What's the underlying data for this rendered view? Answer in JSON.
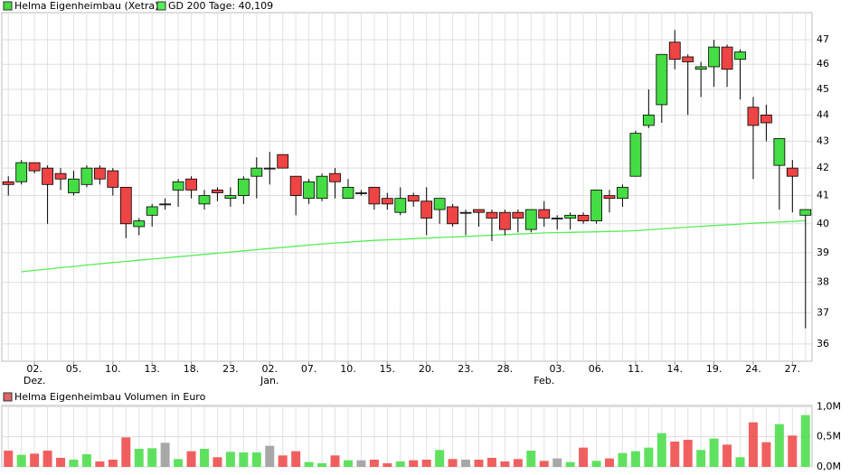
{
  "chart_data": [
    {
      "type": "candlestick",
      "title": "Helma Eigenheimbau (Xetra)",
      "legend_color": "#44dd44",
      "log_scale": true,
      "grid": true,
      "up_color": "#44dd44",
      "down_color": "#ee4444",
      "flat_color": "#999999",
      "categories": [
        null,
        null,
        "02.",
        null,
        null,
        "05.",
        null,
        null,
        "10.",
        null,
        null,
        "13.",
        null,
        null,
        "18.",
        null,
        null,
        "23.",
        null,
        null,
        "02.",
        null,
        null,
        "07.",
        null,
        null,
        "10.",
        null,
        null,
        "15.",
        null,
        null,
        "20.",
        null,
        null,
        "23.",
        null,
        null,
        "28.",
        null,
        null,
        null,
        "03.",
        null,
        null,
        "06.",
        null,
        null,
        "11.",
        null,
        null,
        "14.",
        null,
        null,
        "19.",
        null,
        null,
        "24.",
        null,
        null,
        "27.",
        null
      ],
      "month_labels": [
        null,
        null,
        "Dez.",
        null,
        null,
        null,
        null,
        null,
        null,
        null,
        null,
        null,
        null,
        null,
        null,
        null,
        null,
        null,
        null,
        null,
        "Jan.",
        null,
        null,
        null,
        null,
        null,
        null,
        null,
        null,
        null,
        null,
        null,
        null,
        null,
        null,
        null,
        null,
        null,
        null,
        null,
        null,
        "Feb.",
        null,
        null,
        null,
        null,
        null,
        null,
        null,
        null,
        null,
        null,
        null,
        null,
        null,
        null,
        null,
        null,
        null,
        null,
        null,
        null
      ],
      "open": [
        41.5,
        41.5,
        42.2,
        42.0,
        41.8,
        41.1,
        41.4,
        42.0,
        41.9,
        41.3,
        39.9,
        40.3,
        40.7,
        41.2,
        41.6,
        40.7,
        41.2,
        40.9,
        41.0,
        41.7,
        42.0,
        42.5,
        41.7,
        40.9,
        40.9,
        41.8,
        40.9,
        41.1,
        41.3,
        40.9,
        40.4,
        41.0,
        40.8,
        40.5,
        40.6,
        40.4,
        40.5,
        40.4,
        40.4,
        40.4,
        39.8,
        40.5,
        40.2,
        40.2,
        40.3,
        40.1,
        41.0,
        40.9,
        41.7,
        43.6,
        44.4,
        46.9,
        46.3,
        45.8,
        45.9,
        46.7,
        46.2,
        44.3,
        44.0,
        42.1,
        42.0,
        40.3
      ],
      "high": [
        41.7,
        42.3,
        42.2,
        42.1,
        42.0,
        41.9,
        42.1,
        42.1,
        42.0,
        41.3,
        40.2,
        40.7,
        40.9,
        41.6,
        41.7,
        41.2,
        41.3,
        41.3,
        41.7,
        42.4,
        42.6,
        42.5,
        41.7,
        41.6,
        41.8,
        42.0,
        41.6,
        41.2,
        41.3,
        41.1,
        41.3,
        41.1,
        41.3,
        40.9,
        40.7,
        40.5,
        40.5,
        40.5,
        40.5,
        40.5,
        40.5,
        40.8,
        40.3,
        40.4,
        40.4,
        41.2,
        41.2,
        41.4,
        43.4,
        45.0,
        46.4,
        47.4,
        46.4,
        46.1,
        47.0,
        46.8,
        46.6,
        44.7,
        44.4,
        43.1,
        42.3,
        40.5
      ],
      "low": [
        41.0,
        41.4,
        41.8,
        40.0,
        41.2,
        41.0,
        41.3,
        41.4,
        41.0,
        39.5,
        39.6,
        39.9,
        40.5,
        40.6,
        40.9,
        40.5,
        40.8,
        40.6,
        40.7,
        40.9,
        41.4,
        42.0,
        40.3,
        40.7,
        40.8,
        40.9,
        40.9,
        41.0,
        40.5,
        40.5,
        40.3,
        40.6,
        39.6,
        40.0,
        39.9,
        39.6,
        39.9,
        39.4,
        39.6,
        39.7,
        39.7,
        39.9,
        39.8,
        39.8,
        40.0,
        40.0,
        40.4,
        40.6,
        41.7,
        43.5,
        43.7,
        45.8,
        44.0,
        44.7,
        45.1,
        45.1,
        44.6,
        41.6,
        43.0,
        40.5,
        40.4,
        36.5
      ],
      "close": [
        41.4,
        42.2,
        41.9,
        41.4,
        41.6,
        41.6,
        42.0,
        41.6,
        41.3,
        40.0,
        40.1,
        40.6,
        40.7,
        41.5,
        41.2,
        41.0,
        41.1,
        41.0,
        41.6,
        42.0,
        42.0,
        42.0,
        41.0,
        41.5,
        41.7,
        41.5,
        41.3,
        41.1,
        40.7,
        40.7,
        40.9,
        40.8,
        40.2,
        40.9,
        40.0,
        40.4,
        40.4,
        40.2,
        39.8,
        40.2,
        40.5,
        40.2,
        40.2,
        40.3,
        40.1,
        41.2,
        40.9,
        41.3,
        43.3,
        44.0,
        46.4,
        46.2,
        46.1,
        45.9,
        46.7,
        45.8,
        46.5,
        43.6,
        43.7,
        43.1,
        41.7,
        40.5
      ],
      "series": [
        {
          "name": "GD 200 Tage: 40,109",
          "color": "#55ee55",
          "values": [
            null,
            38.35,
            38.4,
            38.44,
            38.49,
            38.53,
            38.58,
            38.62,
            38.66,
            38.7,
            38.74,
            38.78,
            38.82,
            38.86,
            38.9,
            38.94,
            38.98,
            39.02,
            39.06,
            39.1,
            39.14,
            39.18,
            39.22,
            39.26,
            39.3,
            39.33,
            39.36,
            39.39,
            39.42,
            39.44,
            39.46,
            39.48,
            39.5,
            39.52,
            39.54,
            39.56,
            39.58,
            39.6,
            39.62,
            39.64,
            39.66,
            39.68,
            39.69,
            39.7,
            39.71,
            39.72,
            39.73,
            39.74,
            39.76,
            39.79,
            39.82,
            39.85,
            39.88,
            39.91,
            39.94,
            39.96,
            39.99,
            40.02,
            40.04,
            40.06,
            40.08,
            40.109
          ]
        }
      ],
      "ylim": [
        35.46,
        48.13
      ],
      "yticks": [
        36,
        37,
        38,
        39,
        40,
        41,
        42,
        43,
        44,
        45,
        46,
        47
      ]
    },
    {
      "type": "bar",
      "title": "Helma Eigenheimbau Volumen in Euro",
      "legend_color": "#dd6666",
      "grid": true,
      "values": [
        0.27,
        0.2,
        0.22,
        0.27,
        0.15,
        0.12,
        0.21,
        0.09,
        0.12,
        0.49,
        0.3,
        0.31,
        0.4,
        0.13,
        0.26,
        0.3,
        0.16,
        0.25,
        0.24,
        0.24,
        0.35,
        0.19,
        0.26,
        0.08,
        0.06,
        0.19,
        0.11,
        0.11,
        0.12,
        0.06,
        0.09,
        0.11,
        0.12,
        0.28,
        0.13,
        0.12,
        0.12,
        0.15,
        0.09,
        0.13,
        0.27,
        0.1,
        0.14,
        0.08,
        0.32,
        0.1,
        0.14,
        0.23,
        0.26,
        0.32,
        0.56,
        0.42,
        0.45,
        0.28,
        0.47,
        0.37,
        0.16,
        0.74,
        0.41,
        0.71,
        0.52,
        0.86
      ],
      "ylim": [
        0,
        1.02
      ],
      "yticks": [
        {
          "value": 0,
          "label": "0,0M"
        },
        {
          "value": 0.5,
          "label": "0,5M"
        },
        {
          "value": 1.0,
          "label": "1,0M"
        }
      ]
    }
  ]
}
